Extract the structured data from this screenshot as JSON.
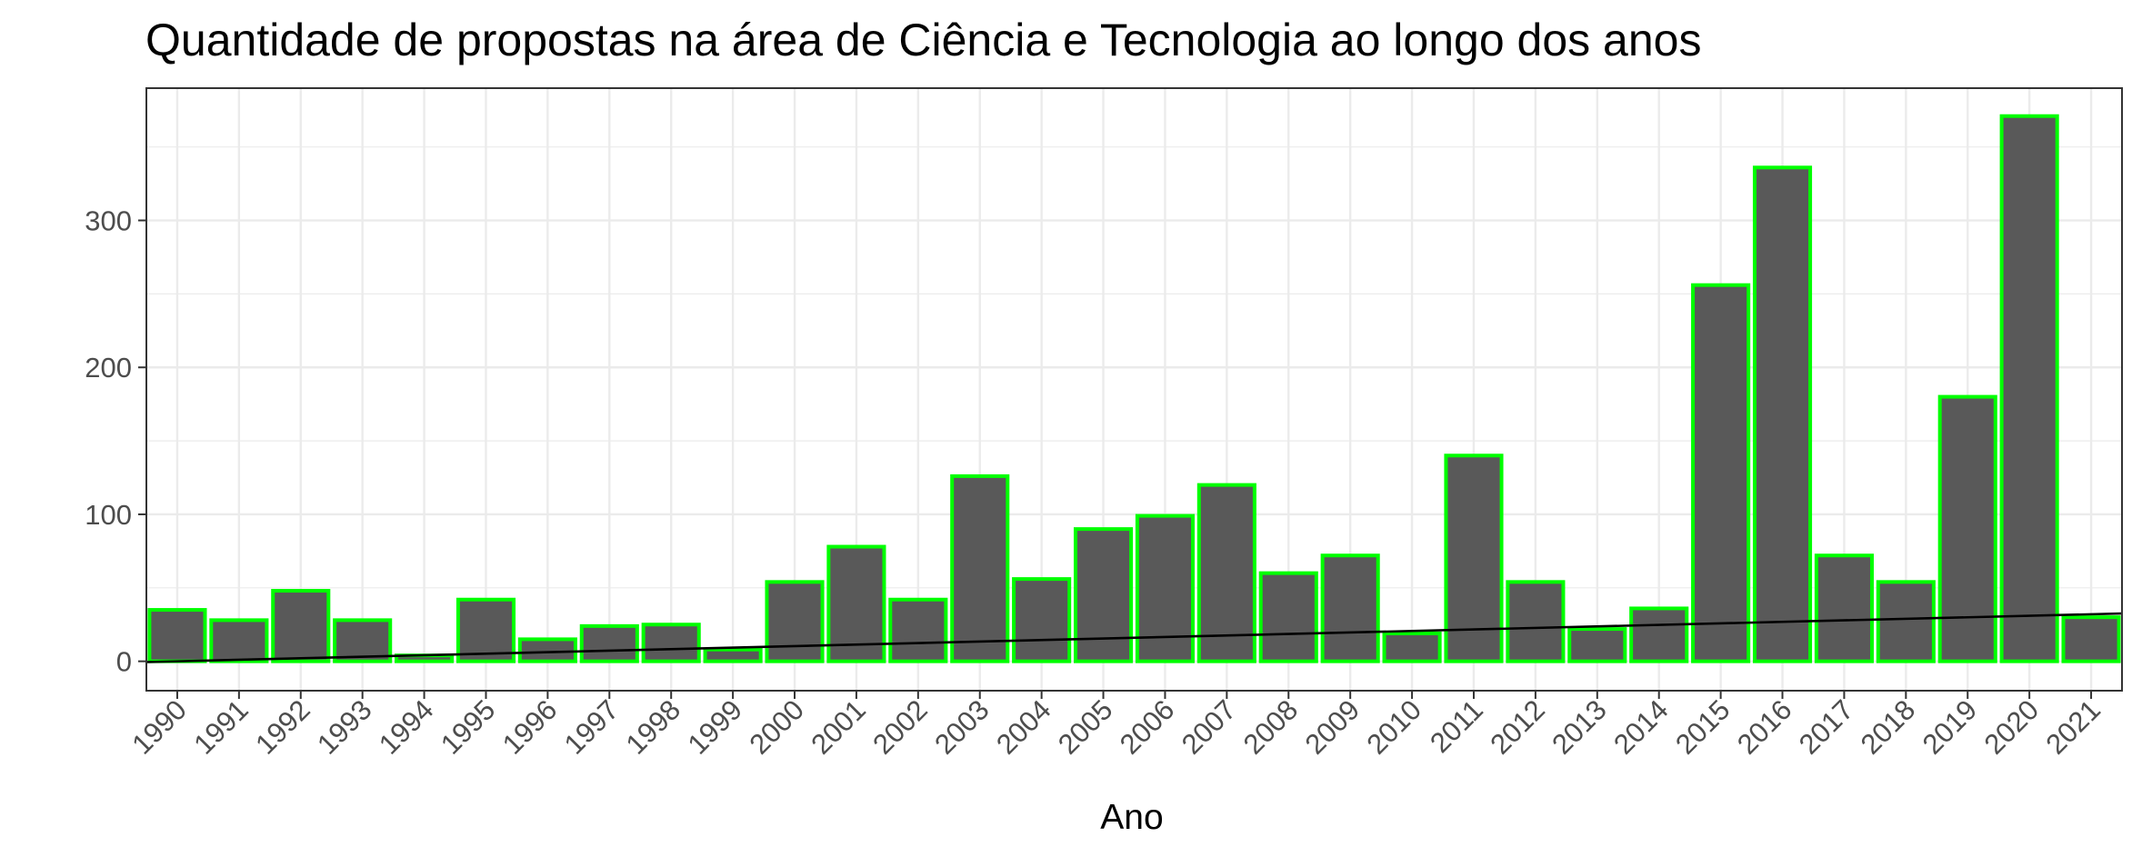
{
  "chart_data": {
    "type": "bar",
    "title": "Quantidade de propostas na área de Ciência e Tecnologia ao longo dos anos",
    "xlabel": "Ano",
    "ylabel": "",
    "categories": [
      "1990",
      "1991",
      "1992",
      "1993",
      "1994",
      "1995",
      "1996",
      "1997",
      "1998",
      "1999",
      "2000",
      "2001",
      "2002",
      "2003",
      "2004",
      "2005",
      "2006",
      "2007",
      "2008",
      "2009",
      "2010",
      "2011",
      "2012",
      "2013",
      "2014",
      "2015",
      "2016",
      "2017",
      "2018",
      "2019",
      "2020",
      "2021"
    ],
    "values": [
      35,
      28,
      48,
      28,
      4,
      42,
      15,
      24,
      25,
      8,
      54,
      78,
      42,
      126,
      56,
      90,
      99,
      120,
      60,
      72,
      19,
      140,
      54,
      22,
      36,
      256,
      336,
      72,
      54,
      180,
      371,
      30
    ],
    "trend_line": {
      "x": [
        "1990",
        "2021"
      ],
      "y": [
        0,
        32
      ]
    },
    "ylim": [
      -20,
      390
    ],
    "yticks": [
      0,
      100,
      200,
      300
    ],
    "grid": true,
    "legend": "none",
    "colors": {
      "bar_fill": "#595959",
      "bar_stroke": "#00ff00",
      "trend": "#000000",
      "grid": "#ebebeb",
      "panel_border": "#333333"
    }
  }
}
